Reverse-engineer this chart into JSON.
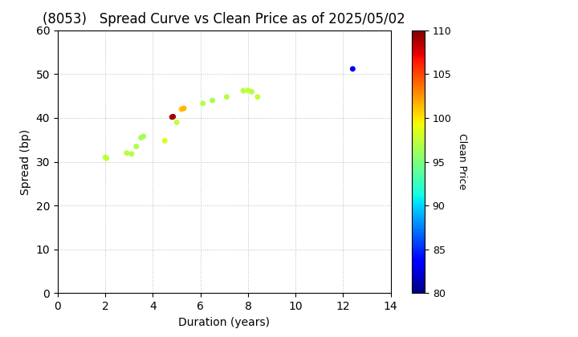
{
  "title": "(8053)   Spread Curve vs Clean Price as of 2025/05/02",
  "xlabel": "Duration (years)",
  "ylabel": "Spread (bp)",
  "colorbar_label": "Clean Price",
  "xlim": [
    0,
    14
  ],
  "ylim": [
    0,
    60
  ],
  "xticks": [
    0,
    2,
    4,
    6,
    8,
    10,
    12,
    14
  ],
  "yticks": [
    0,
    10,
    20,
    30,
    40,
    50,
    60
  ],
  "color_min": 80,
  "color_max": 110,
  "cbar_ticks": [
    80,
    85,
    90,
    95,
    100,
    105,
    110
  ],
  "points": [
    {
      "duration": 2.0,
      "spread": 31.0,
      "price": 97.5
    },
    {
      "duration": 2.05,
      "spread": 30.8,
      "price": 97.3
    },
    {
      "duration": 2.9,
      "spread": 32.0,
      "price": 97.2
    },
    {
      "duration": 3.1,
      "spread": 31.8,
      "price": 97.0
    },
    {
      "duration": 3.3,
      "spread": 33.5,
      "price": 96.8
    },
    {
      "duration": 3.5,
      "spread": 35.5,
      "price": 96.5
    },
    {
      "duration": 3.6,
      "spread": 35.8,
      "price": 96.3
    },
    {
      "duration": 4.5,
      "spread": 34.8,
      "price": 98.5
    },
    {
      "duration": 4.8,
      "spread": 40.2,
      "price": 108.5
    },
    {
      "duration": 4.85,
      "spread": 40.3,
      "price": 109.2
    },
    {
      "duration": 5.0,
      "spread": 39.0,
      "price": 97.5
    },
    {
      "duration": 5.2,
      "spread": 42.0,
      "price": 101.0
    },
    {
      "duration": 5.3,
      "spread": 42.2,
      "price": 101.5
    },
    {
      "duration": 6.1,
      "spread": 43.3,
      "price": 97.0
    },
    {
      "duration": 6.5,
      "spread": 44.0,
      "price": 96.5
    },
    {
      "duration": 7.1,
      "spread": 44.8,
      "price": 97.0
    },
    {
      "duration": 7.8,
      "spread": 46.2,
      "price": 97.0
    },
    {
      "duration": 8.0,
      "spread": 46.3,
      "price": 97.5
    },
    {
      "duration": 8.15,
      "spread": 46.0,
      "price": 97.0
    },
    {
      "duration": 8.4,
      "spread": 44.8,
      "price": 97.5
    },
    {
      "duration": 12.4,
      "spread": 51.2,
      "price": 83.0
    }
  ],
  "marker_size": 25,
  "background_color": "#ffffff",
  "grid_color": "#bbbbbb",
  "title_fontsize": 12,
  "axis_fontsize": 10,
  "cbar_fontsize": 9,
  "cmap": "jet"
}
